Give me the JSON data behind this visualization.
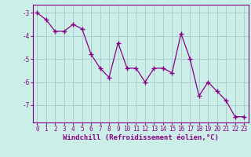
{
  "x": [
    0,
    1,
    2,
    3,
    4,
    5,
    6,
    7,
    8,
    9,
    10,
    11,
    12,
    13,
    14,
    15,
    16,
    17,
    18,
    19,
    20,
    21,
    22,
    23
  ],
  "y": [
    -3.0,
    -3.3,
    -3.8,
    -3.8,
    -3.5,
    -3.7,
    -4.8,
    -5.4,
    -5.8,
    -4.3,
    -5.4,
    -5.4,
    -6.0,
    -5.4,
    -5.4,
    -5.6,
    -3.9,
    -5.0,
    -6.6,
    -6.0,
    -6.4,
    -6.8,
    -7.5,
    -7.5
  ],
  "line_color": "#880088",
  "marker": "+",
  "bg_color": "#cceee8",
  "grid_color": "#aacccc",
  "xlabel": "Windchill (Refroidissement éolien,°C)",
  "ylim": [
    -7.75,
    -2.65
  ],
  "yticks": [
    -7,
    -6,
    -5,
    -4,
    -3
  ],
  "xticks": [
    0,
    1,
    2,
    3,
    4,
    5,
    6,
    7,
    8,
    9,
    10,
    11,
    12,
    13,
    14,
    15,
    16,
    17,
    18,
    19,
    20,
    21,
    22,
    23
  ],
  "spine_color": "#880088",
  "tick_color": "#880088",
  "label_color": "#880088"
}
